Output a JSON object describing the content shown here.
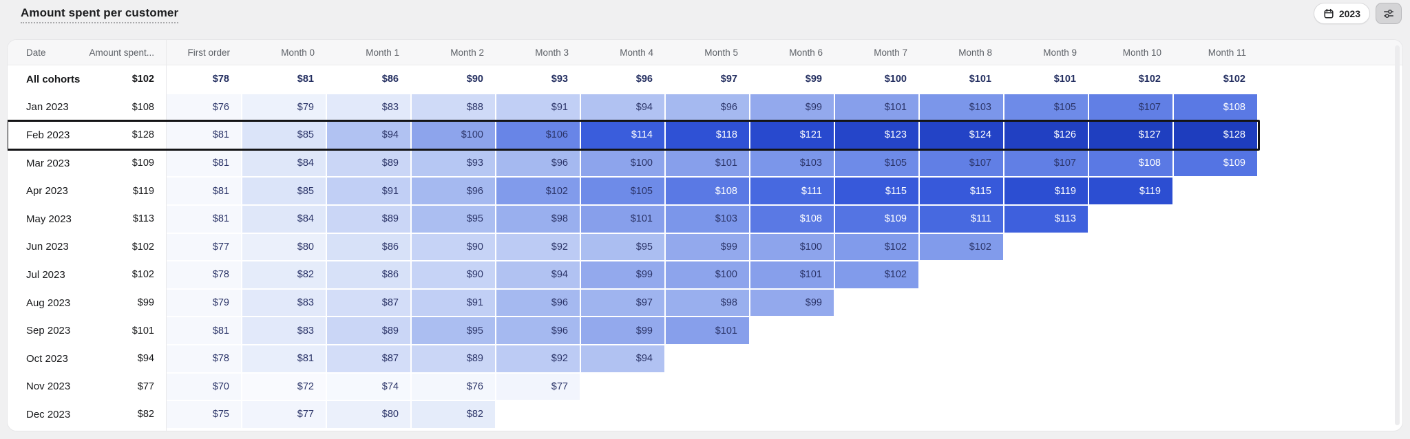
{
  "title": "Amount spent per customer",
  "controls": {
    "year_button": {
      "label": "2023",
      "icon": "calendar-icon"
    },
    "filters_button": {
      "icon": "sliders-icon"
    }
  },
  "colors": {
    "page_bg": "#f0f0f1",
    "card_bg": "#ffffff",
    "highlight_border": "#141416",
    "first_order_bg": "#f6f8fd",
    "value_text_dark": "#2b3468",
    "value_text_light": "#ffffff",
    "white_text_min": 108,
    "heatmap_stops": [
      [
        70,
        "#fbfcff"
      ],
      [
        76,
        "#f4f7fd"
      ],
      [
        80,
        "#ebf0fb"
      ],
      [
        84,
        "#dfe7f9"
      ],
      [
        88,
        "#cfdaf7"
      ],
      [
        92,
        "#bccbf4"
      ],
      [
        96,
        "#a5b9f0"
      ],
      [
        100,
        "#8da4ec"
      ],
      [
        104,
        "#7591e9"
      ],
      [
        108,
        "#5a79e4"
      ],
      [
        112,
        "#4163de"
      ],
      [
        116,
        "#3356d9"
      ],
      [
        120,
        "#2a4bd0"
      ],
      [
        124,
        "#2343c6"
      ],
      [
        128,
        "#1e3dbe"
      ]
    ]
  },
  "table": {
    "columns": [
      "Date",
      "Amount spent...",
      "First order",
      "Month 0",
      "Month 1",
      "Month 2",
      "Month 3",
      "Month 4",
      "Month 5",
      "Month 6",
      "Month 7",
      "Month 8",
      "Month 9",
      "Month 10",
      "Month 11"
    ],
    "currency_prefix": "$",
    "rows": [
      {
        "date": "All cohorts",
        "amount": "$102",
        "summary": true,
        "values": [
          78,
          81,
          86,
          90,
          93,
          96,
          97,
          99,
          100,
          101,
          101,
          102,
          102
        ]
      },
      {
        "date": "Jan 2023",
        "amount": "$108",
        "values": [
          76,
          79,
          83,
          88,
          91,
          94,
          96,
          99,
          101,
          103,
          105,
          107,
          108
        ]
      },
      {
        "date": "Feb 2023",
        "amount": "$128",
        "highlighted": true,
        "values": [
          81,
          85,
          94,
          100,
          106,
          114,
          118,
          121,
          123,
          124,
          126,
          127,
          128
        ]
      },
      {
        "date": "Mar 2023",
        "amount": "$109",
        "values": [
          81,
          84,
          89,
          93,
          96,
          100,
          101,
          103,
          105,
          107,
          107,
          108,
          109
        ]
      },
      {
        "date": "Apr 2023",
        "amount": "$119",
        "values": [
          81,
          85,
          91,
          96,
          102,
          105,
          108,
          111,
          115,
          115,
          119,
          119
        ]
      },
      {
        "date": "May 2023",
        "amount": "$113",
        "values": [
          81,
          84,
          89,
          95,
          98,
          101,
          103,
          108,
          109,
          111,
          113
        ]
      },
      {
        "date": "Jun 2023",
        "amount": "$102",
        "values": [
          77,
          80,
          86,
          90,
          92,
          95,
          99,
          100,
          102,
          102
        ]
      },
      {
        "date": "Jul 2023",
        "amount": "$102",
        "values": [
          78,
          82,
          86,
          90,
          94,
          99,
          100,
          101,
          102
        ]
      },
      {
        "date": "Aug 2023",
        "amount": "$99",
        "values": [
          79,
          83,
          87,
          91,
          96,
          97,
          98,
          99
        ]
      },
      {
        "date": "Sep 2023",
        "amount": "$101",
        "values": [
          81,
          83,
          89,
          95,
          96,
          99,
          101
        ]
      },
      {
        "date": "Oct 2023",
        "amount": "$94",
        "values": [
          78,
          81,
          87,
          89,
          92,
          94
        ]
      },
      {
        "date": "Nov 2023",
        "amount": "$77",
        "values": [
          70,
          72,
          74,
          76,
          77
        ]
      },
      {
        "date": "Dec 2023",
        "amount": "$82",
        "values": [
          75,
          77,
          80,
          82
        ]
      }
    ]
  }
}
